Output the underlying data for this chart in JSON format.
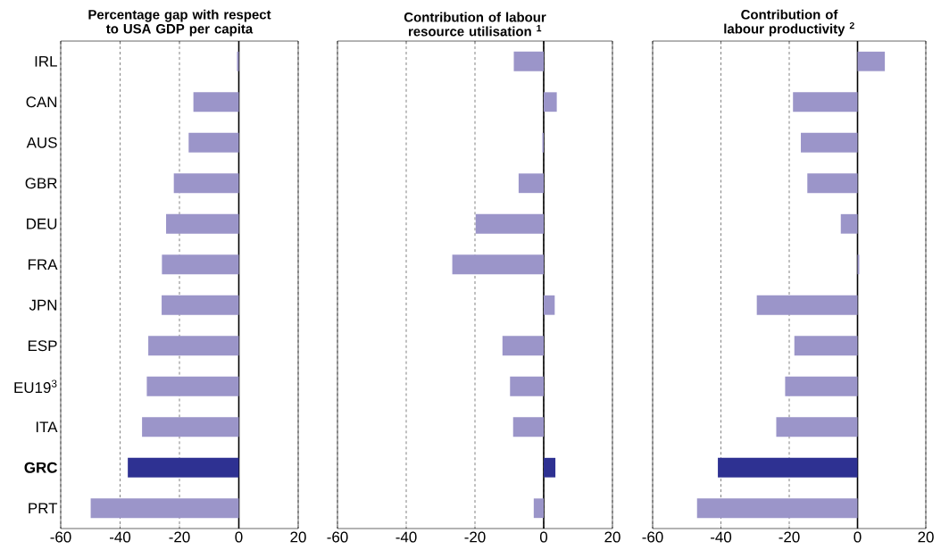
{
  "chart_data": [
    {
      "type": "bar",
      "orientation": "horizontal",
      "title": "Percentage gap with respect to USA GDP per capita",
      "categories": [
        "IRL",
        "CAN",
        "AUS",
        "GBR",
        "DEU",
        "FRA",
        "JPN",
        "ESP",
        "EU19$^{3}$",
        "ITA",
        "**GRC**",
        "PRT"
      ],
      "values": [
        -0.6,
        -15.3,
        -16.9,
        -21.9,
        -24.5,
        -25.9,
        -26.0,
        -30.5,
        -31.0,
        -32.6,
        -37.4,
        -49.9
      ],
      "colors": [
        "#9b95c9",
        "#9b95c9",
        "#9b95c9",
        "#9b95c9",
        "#9b95c9",
        "#9b95c9",
        "#9b95c9",
        "#9b95c9",
        "#9b95c9",
        "#9b95c9",
        "#2e3192",
        "#9b95c9"
      ],
      "xlim": [
        -60,
        20
      ],
      "xticks": [
        -60,
        -40,
        -20,
        0,
        20
      ],
      "grid": "x",
      "ref_lines": [
        {
          "axis": "x",
          "value": 0,
          "color": "#000000"
        }
      ]
    },
    {
      "type": "bar",
      "orientation": "horizontal",
      "title": "Contribution of labour resource utilisation $^{1}$",
      "values": [
        -8.7,
        3.8,
        -0.4,
        -7.3,
        -19.8,
        -26.6,
        3.2,
        -12.0,
        -9.8,
        -8.9,
        3.4,
        -2.9
      ],
      "colors": [
        "#9b95c9",
        "#9b95c9",
        "#9b95c9",
        "#9b95c9",
        "#9b95c9",
        "#9b95c9",
        "#9b95c9",
        "#9b95c9",
        "#9b95c9",
        "#9b95c9",
        "#2e3192",
        "#9b95c9"
      ],
      "xlim": [
        -60,
        20
      ],
      "xticks": [
        -60,
        -40,
        -20,
        0,
        20
      ],
      "grid": "x",
      "tick_labels": "x",
      "ref_lines": [
        {
          "axis": "x",
          "value": 0,
          "color": "#000000"
        }
      ]
    },
    {
      "type": "bar",
      "orientation": "horizontal",
      "title": "Contribution of labour productivity $^{2}$",
      "values": [
        8.0,
        -18.9,
        -16.6,
        -14.7,
        -4.9,
        0.5,
        -29.5,
        -18.5,
        -21.2,
        -23.8,
        -40.9,
        -47.0
      ],
      "colors": [
        "#9b95c9",
        "#9b95c9",
        "#9b95c9",
        "#9b95c9",
        "#9b95c9",
        "#9b95c9",
        "#9b95c9",
        "#9b95c9",
        "#9b95c9",
        "#9b95c9",
        "#2e3192",
        "#9b95c9"
      ],
      "xlim": [
        -60,
        20
      ],
      "xticks": [
        -60,
        -40,
        -20,
        0,
        20
      ],
      "grid": "x",
      "tick_labels": "x",
      "ref_lines": [
        {
          "axis": "x",
          "value": 0,
          "color": "#000000"
        }
      ]
    }
  ]
}
